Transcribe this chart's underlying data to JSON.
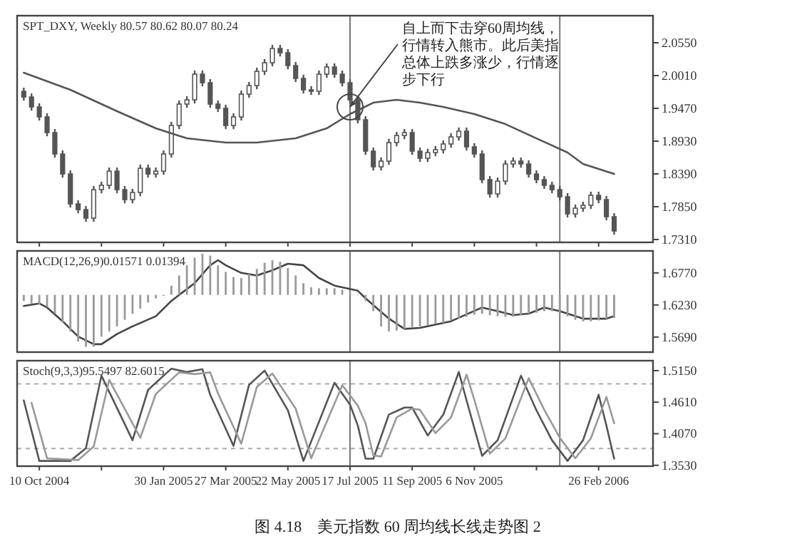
{
  "chart_data": [
    {
      "type": "candlestick",
      "title": "SPT_DXY, Weekly 80.57 80.62 80.07 80.24",
      "color": "#555555",
      "x": [
        "2004-09-26",
        "2004-10-03",
        "2004-10-10",
        "2004-10-17",
        "2004-10-24",
        "2004-10-31",
        "2004-11-07",
        "2004-11-14",
        "2004-11-21",
        "2004-11-28",
        "2004-12-05",
        "2004-12-12",
        "2004-12-19",
        "2004-12-26",
        "2005-01-02",
        "2005-01-09",
        "2005-01-16",
        "2005-01-23",
        "2005-01-30",
        "2005-02-06",
        "2005-02-13",
        "2005-02-20",
        "2005-02-27",
        "2005-03-06",
        "2005-03-13",
        "2005-03-20",
        "2005-03-27",
        "2005-04-03",
        "2005-04-10",
        "2005-04-17",
        "2005-04-24",
        "2005-05-01",
        "2005-05-08",
        "2005-05-15",
        "2005-05-22",
        "2005-05-29",
        "2005-06-05",
        "2005-06-12",
        "2005-06-19",
        "2005-06-26",
        "2005-07-03",
        "2005-07-10",
        "2005-07-17",
        "2005-07-24",
        "2005-07-31",
        "2005-08-07",
        "2005-08-14",
        "2005-08-21",
        "2005-08-28",
        "2005-09-04",
        "2005-09-11",
        "2005-09-18",
        "2005-09-25",
        "2005-10-02",
        "2005-10-09",
        "2005-10-16",
        "2005-10-23",
        "2005-10-30",
        "2005-11-06",
        "2005-11-13",
        "2005-11-20",
        "2005-11-27",
        "2005-12-04",
        "2005-12-11",
        "2005-12-18",
        "2005-12-25",
        "2006-01-01",
        "2006-01-08",
        "2006-01-15",
        "2006-01-22",
        "2006-01-29",
        "2006-02-05",
        "2006-02-12",
        "2006-02-19",
        "2006-02-26",
        "2006-03-05",
        "2006-03-12"
      ],
      "ohlc": [
        [
          1.975,
          1.981,
          1.9597,
          1.9657
        ],
        [
          1.9657,
          1.9717,
          1.9433,
          1.9493
        ],
        [
          1.9493,
          1.9553,
          1.9269,
          1.9329
        ],
        [
          1.9329,
          1.9389,
          1.901,
          1.907
        ],
        [
          1.907,
          1.913,
          1.8658,
          1.8718
        ],
        [
          1.8718,
          1.8778,
          1.8329,
          1.8389
        ],
        [
          1.8389,
          1.8449,
          1.7836,
          1.7896
        ],
        [
          1.7896,
          1.7956,
          1.7742,
          1.7802
        ],
        [
          1.7802,
          1.7862,
          1.7602,
          1.7662
        ],
        [
          1.7662,
          1.8191,
          1.7602,
          1.8131
        ],
        [
          1.8131,
          1.8262,
          1.8071,
          1.8202
        ],
        [
          1.8202,
          1.8496,
          1.8142,
          1.8436
        ],
        [
          1.8436,
          1.8496,
          1.8071,
          1.8131
        ],
        [
          1.8131,
          1.8191,
          1.7907,
          1.7967
        ],
        [
          1.7967,
          1.8144,
          1.7907,
          1.8084
        ],
        [
          1.8084,
          1.8543,
          1.8024,
          1.8483
        ],
        [
          1.8483,
          1.8543,
          1.8329,
          1.8389
        ],
        [
          1.8389,
          1.8496,
          1.8329,
          1.8436
        ],
        [
          1.8436,
          1.8778,
          1.8376,
          1.8718
        ],
        [
          1.8718,
          1.9248,
          1.8658,
          1.9188
        ],
        [
          1.9188,
          1.96,
          1.9128,
          1.954
        ],
        [
          1.954,
          1.967,
          1.948,
          1.961
        ],
        [
          1.961,
          2.0093,
          1.955,
          2.0033
        ],
        [
          2.0033,
          2.0093,
          1.9832,
          1.9892
        ],
        [
          1.9892,
          1.9952,
          1.948,
          1.954
        ],
        [
          1.954,
          1.96,
          1.941,
          1.947
        ],
        [
          1.947,
          1.953,
          1.9128,
          1.9188
        ],
        [
          1.9188,
          1.9389,
          1.9128,
          1.9329
        ],
        [
          1.9329,
          1.9764,
          1.9269,
          1.9704
        ],
        [
          1.9704,
          1.9905,
          1.9644,
          1.9845
        ],
        [
          1.9845,
          2.014,
          1.9785,
          2.008
        ],
        [
          2.008,
          2.0281,
          2.002,
          2.0221
        ],
        [
          2.0221,
          2.0516,
          2.0161,
          2.0456
        ],
        [
          2.0456,
          2.0516,
          2.0325,
          2.0385
        ],
        [
          2.0385,
          2.0445,
          2.0114,
          2.0174
        ],
        [
          2.0174,
          2.0234,
          1.9903,
          1.9963
        ],
        [
          1.9963,
          2.0023,
          1.9715,
          1.9775
        ],
        [
          1.9775,
          1.9835,
          1.9691,
          1.9751
        ],
        [
          1.9751,
          2.0093,
          1.9691,
          2.0033
        ],
        [
          2.0033,
          2.021,
          1.9973,
          2.015
        ],
        [
          2.015,
          2.021,
          1.9973,
          2.0033
        ],
        [
          2.0033,
          2.0093,
          1.9832,
          1.9892
        ],
        [
          1.9892,
          1.9952,
          1.955,
          1.961
        ],
        [
          1.961,
          1.967,
          1.9222,
          1.9282
        ],
        [
          1.9282,
          1.9342,
          1.8705,
          1.8765
        ],
        [
          1.8765,
          1.8825,
          1.8447,
          1.8507
        ],
        [
          1.8507,
          1.8661,
          1.8447,
          1.8601
        ],
        [
          1.8601,
          1.8966,
          1.8541,
          1.8906
        ],
        [
          1.8906,
          1.9083,
          1.8846,
          1.9023
        ],
        [
          1.9023,
          1.913,
          1.8963,
          1.907
        ],
        [
          1.907,
          1.913,
          1.8705,
          1.8765
        ],
        [
          1.8765,
          1.8825,
          1.8588,
          1.8648
        ],
        [
          1.8648,
          1.8802,
          1.8588,
          1.8742
        ],
        [
          1.8742,
          1.8849,
          1.8682,
          1.8789
        ],
        [
          1.8789,
          1.8943,
          1.8729,
          1.8883
        ],
        [
          1.8883,
          1.906,
          1.8823,
          1.9
        ],
        [
          1.9,
          1.9154,
          1.894,
          1.9094
        ],
        [
          1.9094,
          1.9154,
          1.8776,
          1.8836
        ],
        [
          1.8836,
          1.8896,
          1.8658,
          1.8718
        ],
        [
          1.8718,
          1.8778,
          1.8236,
          1.8296
        ],
        [
          1.8296,
          1.8356,
          1.8001,
          1.8061
        ],
        [
          1.8061,
          1.8332,
          1.8001,
          1.8272
        ],
        [
          1.8272,
          1.8614,
          1.8212,
          1.8554
        ],
        [
          1.8554,
          1.8661,
          1.8494,
          1.8601
        ],
        [
          1.8601,
          1.8661,
          1.8494,
          1.8554
        ],
        [
          1.8554,
          1.8614,
          1.8329,
          1.8389
        ],
        [
          1.8389,
          1.8449,
          1.8236,
          1.8296
        ],
        [
          1.8296,
          1.8356,
          1.8142,
          1.8202
        ],
        [
          1.8202,
          1.8262,
          1.8071,
          1.8131
        ],
        [
          1.8131,
          1.8191,
          1.7954,
          1.8014
        ],
        [
          1.8014,
          1.8074,
          1.7672,
          1.7732
        ],
        [
          1.7732,
          1.7886,
          1.7672,
          1.7826
        ],
        [
          1.7826,
          1.7933,
          1.7766,
          1.7873
        ],
        [
          1.7873,
          1.8097,
          1.7813,
          1.8037
        ],
        [
          1.8037,
          1.8097,
          1.7907,
          1.7967
        ],
        [
          1.7967,
          1.8027,
          1.7625,
          1.7685
        ],
        [
          1.7685,
          1.7745,
          1.739,
          1.745
        ]
      ],
      "series": [
        {
          "type": "line",
          "color": "#555555",
          "x": [
            "2004-09-26",
            "2004-11-07",
            "2004-12-19",
            "2005-01-23",
            "2005-02-20",
            "2005-03-27",
            "2005-04-24",
            "2005-05-29",
            "2005-06-26",
            "2005-07-17",
            "2005-08-07",
            "2005-08-28",
            "2005-09-18",
            "2005-10-09",
            "2005-11-06",
            "2005-12-04",
            "2006-01-01",
            "2006-01-29",
            "2006-02-12",
            "2006-03-12"
          ],
          "values": [
            2.0057,
            1.9775,
            1.9423,
            1.9141,
            1.8976,
            1.8906,
            1.8906,
            1.8976,
            1.9141,
            1.9376,
            1.9563,
            1.961,
            1.9563,
            1.9493,
            1.9376,
            1.9211,
            1.8976,
            1.8742,
            1.8554,
            1.8389
          ]
        }
      ],
      "xlim": [
        "2004-09-20",
        "2006-04-16"
      ],
      "ylim": [
        1.7263,
        2.0996
      ],
      "yticks": [
        {
          "value": 2.055,
          "label": "2.0550"
        },
        {
          "value": 2.001,
          "label": "2.0010"
        },
        {
          "value": 1.947,
          "label": "1.9470"
        },
        {
          "value": 1.893,
          "label": "1.8930"
        },
        {
          "value": 1.839,
          "label": "1.8390"
        },
        {
          "value": 1.785,
          "label": "1.7850"
        },
        {
          "value": 1.731,
          "label": "1.7310"
        }
      ],
      "xticks": [
        {
          "value": "2004-10-10",
          "label": null
        },
        {
          "value": "2004-12-05",
          "label": null
        },
        {
          "value": "2005-01-30",
          "label": null
        },
        {
          "value": "2005-03-27",
          "label": null
        },
        {
          "value": "2005-05-22",
          "label": null
        },
        {
          "value": "2005-07-17",
          "label": null
        },
        {
          "value": "2005-09-11",
          "label": null
        },
        {
          "value": "2005-11-06",
          "label": null
        },
        {
          "value": "2006-01-01",
          "label": null
        },
        {
          "value": "2006-02-26",
          "label": null
        }
      ],
      "tick_labels": "y",
      "ref_lines": [
        {
          "axis": "x",
          "value": "2005-07-17",
          "color": "#777777"
        },
        {
          "axis": "x",
          "value": "2006-01-22",
          "color": "#777777"
        }
      ],
      "annotations": [
        {
          "text": "自上而下击穿60周均线，行情转入熊市。此后美指总体上跌多涨少，行情逐步下行",
          "x": "2005-07-17",
          "y": 1.9493
        }
      ]
    },
    {
      "type": "bar",
      "title": "MACD(12,26,9)0.01571 0.01394",
      "series": [
        {
          "type": "bar",
          "color": "#999999",
          "x": [
            "2004-09-26",
            "2004-10-03",
            "2004-10-10",
            "2004-10-17",
            "2004-10-24",
            "2004-10-31",
            "2004-11-07",
            "2004-11-14",
            "2004-11-21",
            "2004-11-28",
            "2004-12-05",
            "2004-12-12",
            "2004-12-19",
            "2004-12-26",
            "2005-01-02",
            "2005-01-09",
            "2005-01-16",
            "2005-01-23",
            "2005-01-30",
            "2005-02-06",
            "2005-02-13",
            "2005-02-20",
            "2005-02-27",
            "2005-03-06",
            "2005-03-13",
            "2005-03-20",
            "2005-03-27",
            "2005-04-03",
            "2005-04-10",
            "2005-04-17",
            "2005-04-24",
            "2005-05-01",
            "2005-05-08",
            "2005-05-15",
            "2005-05-22",
            "2005-05-29",
            "2005-06-05",
            "2005-06-12",
            "2005-06-19",
            "2005-06-26",
            "2005-07-03",
            "2005-07-10",
            "2005-07-17",
            "2005-07-24",
            "2005-07-31",
            "2005-08-07",
            "2005-08-14",
            "2005-08-21",
            "2005-08-28",
            "2005-09-04",
            "2005-09-11",
            "2005-09-18",
            "2005-09-25",
            "2005-10-02",
            "2005-10-09",
            "2005-10-16",
            "2005-10-23",
            "2005-10-30",
            "2005-11-06",
            "2005-11-13",
            "2005-11-20",
            "2005-11-27",
            "2005-12-04",
            "2005-12-11",
            "2005-12-18",
            "2005-12-25",
            "2006-01-01",
            "2006-01-08",
            "2006-01-15",
            "2006-01-22",
            "2006-01-29",
            "2006-02-05",
            "2006-02-12",
            "2006-02-19",
            "2006-02-26",
            "2006-03-05",
            "2006-03-12"
          ],
          "values": [
            -0.0103,
            -0.0146,
            -0.0163,
            -0.0206,
            -0.0317,
            -0.0471,
            -0.0617,
            -0.0788,
            -0.0874,
            -0.0874,
            -0.0703,
            -0.0617,
            -0.0531,
            -0.042,
            -0.0317,
            -0.0231,
            -0.0129,
            -0.006,
            -0.0017,
            0.0154,
            0.0326,
            0.0497,
            0.0626,
            0.0694,
            0.066,
            0.0497,
            0.0386,
            0.03,
            0.0283,
            0.0351,
            0.0437,
            0.054,
            0.0583,
            0.0557,
            0.0454,
            0.0326,
            0.0197,
            0.0129,
            0.0111,
            0.0111,
            0.0111,
            0.0086,
            0.0051,
            0.0,
            -0.0103,
            -0.0274,
            -0.0531,
            -0.0617,
            -0.06,
            -0.0574,
            -0.0557,
            -0.0531,
            -0.0514,
            -0.0488,
            -0.0471,
            -0.0429,
            -0.0403,
            -0.0369,
            -0.0334,
            -0.0317,
            -0.0343,
            -0.036,
            -0.0369,
            -0.0369,
            -0.0343,
            -0.0317,
            -0.03,
            -0.0274,
            -0.0274,
            -0.0317,
            -0.036,
            -0.042,
            -0.0446,
            -0.0446,
            -0.0429,
            -0.0403,
            -0.0386
          ],
          "base": [
            1.64,
            1.64,
            1.64,
            1.64,
            1.64,
            1.64,
            1.64,
            1.64,
            1.64,
            1.64,
            1.64,
            1.64,
            1.64,
            1.64,
            1.64,
            1.64,
            1.64,
            1.64,
            1.64,
            1.64,
            1.64,
            1.64,
            1.64,
            1.64,
            1.64,
            1.64,
            1.64,
            1.64,
            1.64,
            1.64,
            1.64,
            1.64,
            1.64,
            1.64,
            1.64,
            1.64,
            1.64,
            1.64,
            1.64,
            1.64,
            1.64,
            1.64,
            1.64,
            1.64,
            1.64,
            1.64,
            1.64,
            1.64,
            1.64,
            1.64,
            1.64,
            1.64,
            1.64,
            1.64,
            1.64,
            1.64,
            1.64,
            1.64,
            1.64,
            1.64,
            1.64,
            1.64,
            1.64,
            1.64,
            1.64,
            1.64,
            1.64,
            1.64,
            1.64,
            1.64,
            1.64,
            1.64,
            1.64,
            1.64,
            1.64,
            1.64,
            1.64
          ]
        },
        {
          "type": "line",
          "color": "#444444",
          "x": [
            "2004-09-26",
            "2004-10-10",
            "2004-10-17",
            "2004-10-31",
            "2004-11-14",
            "2004-11-28",
            "2004-12-05",
            "2004-12-19",
            "2005-01-02",
            "2005-01-23",
            "2005-02-06",
            "2005-02-27",
            "2005-03-13",
            "2005-03-20",
            "2005-03-27",
            "2005-04-10",
            "2005-04-24",
            "2005-05-08",
            "2005-05-22",
            "2005-06-05",
            "2005-06-19",
            "2005-07-03",
            "2005-07-24",
            "2005-07-31",
            "2005-08-21",
            "2005-09-04",
            "2005-09-18",
            "2005-10-16",
            "2005-11-13",
            "2005-11-27",
            "2005-12-11",
            "2005-12-25",
            "2006-01-08",
            "2006-01-22",
            "2006-02-12",
            "2006-03-05",
            "2006-03-12"
          ],
          "values": [
            1.6213,
            1.6256,
            1.6187,
            1.5956,
            1.5699,
            1.557,
            1.557,
            1.5741,
            1.587,
            1.6041,
            1.6298,
            1.6598,
            1.6898,
            1.6984,
            1.6898,
            1.677,
            1.6727,
            1.6813,
            1.6924,
            1.6898,
            1.6684,
            1.6556,
            1.647,
            1.6341,
            1.6001,
            1.5827,
            1.5844,
            1.5956,
            1.6187,
            1.6127,
            1.6059,
            1.6084,
            1.6187,
            1.6127,
            1.5999,
            1.5999,
            1.6041
          ]
        }
      ],
      "xlim": [
        "2004-09-20",
        "2006-04-16"
      ],
      "ylim": [
        1.5436,
        1.714
      ],
      "yticks": [
        {
          "value": 1.677,
          "label": "1.6770"
        },
        {
          "value": 1.623,
          "label": "1.6230"
        },
        {
          "value": 1.569,
          "label": "1.5690"
        }
      ],
      "tick_labels": "y",
      "ref_lines": [
        {
          "axis": "x",
          "value": "2005-07-17",
          "color": "#777777"
        },
        {
          "axis": "x",
          "value": "2006-01-22",
          "color": "#777777"
        }
      ]
    },
    {
      "type": "line",
      "title": "Stoch(9,3,3)95.5497 82.6015",
      "series": [
        {
          "color": "#555555",
          "x": [
            "2004-09-26",
            "2004-10-10",
            "2004-10-17",
            "2004-11-07",
            "2004-11-21",
            "2004-12-05",
            "2005-01-02",
            "2005-01-16",
            "2005-02-06",
            "2005-02-20",
            "2005-03-06",
            "2005-03-13",
            "2005-04-03",
            "2005-04-17",
            "2005-05-01",
            "2005-05-22",
            "2005-06-05",
            "2005-07-03",
            "2005-07-17",
            "2005-07-24",
            "2005-07-31",
            "2005-08-07",
            "2005-08-21",
            "2005-09-04",
            "2005-09-11",
            "2005-09-25",
            "2005-10-09",
            "2005-10-23",
            "2005-10-30",
            "2005-11-13",
            "2005-11-27",
            "2005-12-18",
            "2006-01-01",
            "2006-01-15",
            "2006-01-29",
            "2006-02-12",
            "2006-02-26",
            "2006-03-05",
            "2006-03-12"
          ],
          "values": [
            1.464,
            1.3605,
            1.3605,
            1.3605,
            1.3823,
            1.5063,
            1.3959,
            1.482,
            1.5184,
            1.5126,
            1.5174,
            1.4737,
            1.3862,
            1.4907,
            1.515,
            1.447,
            1.3605,
            1.4941,
            1.4567,
            1.4212,
            1.3643,
            1.3643,
            1.4397,
            1.4518,
            1.4518,
            1.404,
            1.4397,
            1.5126,
            1.464,
            1.3692,
            1.3959,
            1.5063,
            1.447,
            1.3959,
            1.3605,
            1.3959,
            1.4737,
            1.4212,
            1.3643
          ]
        },
        {
          "color": "#999999",
          "x": [
            "2004-10-03",
            "2004-10-17",
            "2004-11-14",
            "2004-11-28",
            "2004-12-12",
            "2005-01-09",
            "2005-01-23",
            "2005-02-13",
            "2005-02-27",
            "2005-03-13",
            "2005-03-20",
            "2005-04-10",
            "2005-04-24",
            "2005-05-08",
            "2005-05-29",
            "2005-06-12",
            "2005-07-10",
            "2005-07-24",
            "2005-07-31",
            "2005-08-07",
            "2005-08-14",
            "2005-08-28",
            "2005-09-11",
            "2005-09-18",
            "2005-10-02",
            "2005-10-16",
            "2005-10-30",
            "2005-11-06",
            "2005-11-20",
            "2005-12-04",
            "2005-12-25",
            "2006-01-08",
            "2006-01-22",
            "2006-02-05",
            "2006-02-19",
            "2006-03-05",
            "2006-03-12"
          ],
          "values": [
            1.46,
            1.365,
            1.362,
            1.385,
            1.499,
            1.4,
            1.475,
            1.512,
            1.509,
            1.512,
            1.476,
            1.39,
            1.487,
            1.51,
            1.45,
            1.365,
            1.49,
            1.455,
            1.425,
            1.37,
            1.368,
            1.435,
            1.45,
            1.448,
            1.408,
            1.435,
            1.508,
            1.465,
            1.373,
            1.399,
            1.502,
            1.448,
            1.4,
            1.365,
            1.399,
            1.47,
            1.425
          ]
        }
      ],
      "xlim": [
        "2004-09-20",
        "2006-04-16"
      ],
      "ylim": [
        1.3515,
        1.532
      ],
      "yticks": [
        {
          "value": 1.515,
          "label": "1.5150"
        },
        {
          "value": 1.461,
          "label": "1.4610"
        },
        {
          "value": 1.407,
          "label": "1.4070"
        },
        {
          "value": 1.353,
          "label": "1.3530"
        }
      ],
      "xticks": [
        {
          "value": "2004-10-10",
          "label": "10 Oct 2004"
        },
        {
          "value": "2004-12-05",
          "label": null
        },
        {
          "value": "2005-01-30",
          "label": "30 Jan 2005"
        },
        {
          "value": "2005-03-27",
          "label": "27 Mar 2005"
        },
        {
          "value": "2005-05-22",
          "label": "22 May 2005"
        },
        {
          "value": "2005-07-17",
          "label": "17 Jul 2005"
        },
        {
          "value": "2005-09-11",
          "label": "11 Sep 2005"
        },
        {
          "value": "2005-11-06",
          "label": "6 Nov 2005"
        },
        {
          "value": "2006-01-01",
          "label": null
        },
        {
          "value": "2006-02-26",
          "label": "26 Feb 2006"
        }
      ],
      "ref_lines": [
        {
          "axis": "x",
          "value": "2005-07-17",
          "color": "#777777"
        },
        {
          "axis": "x",
          "value": "2006-01-22",
          "color": "#777777"
        },
        {
          "axis": "y",
          "value": 1.4924,
          "color": "#aaaaaa",
          "line_style": "dashed"
        },
        {
          "axis": "y",
          "value": 1.3817,
          "color": "#aaaaaa",
          "line_style": "dashed"
        }
      ],
      "annotations": [
        "图 4.18　美元指数 60 周均线长线走势图 2"
      ]
    }
  ]
}
